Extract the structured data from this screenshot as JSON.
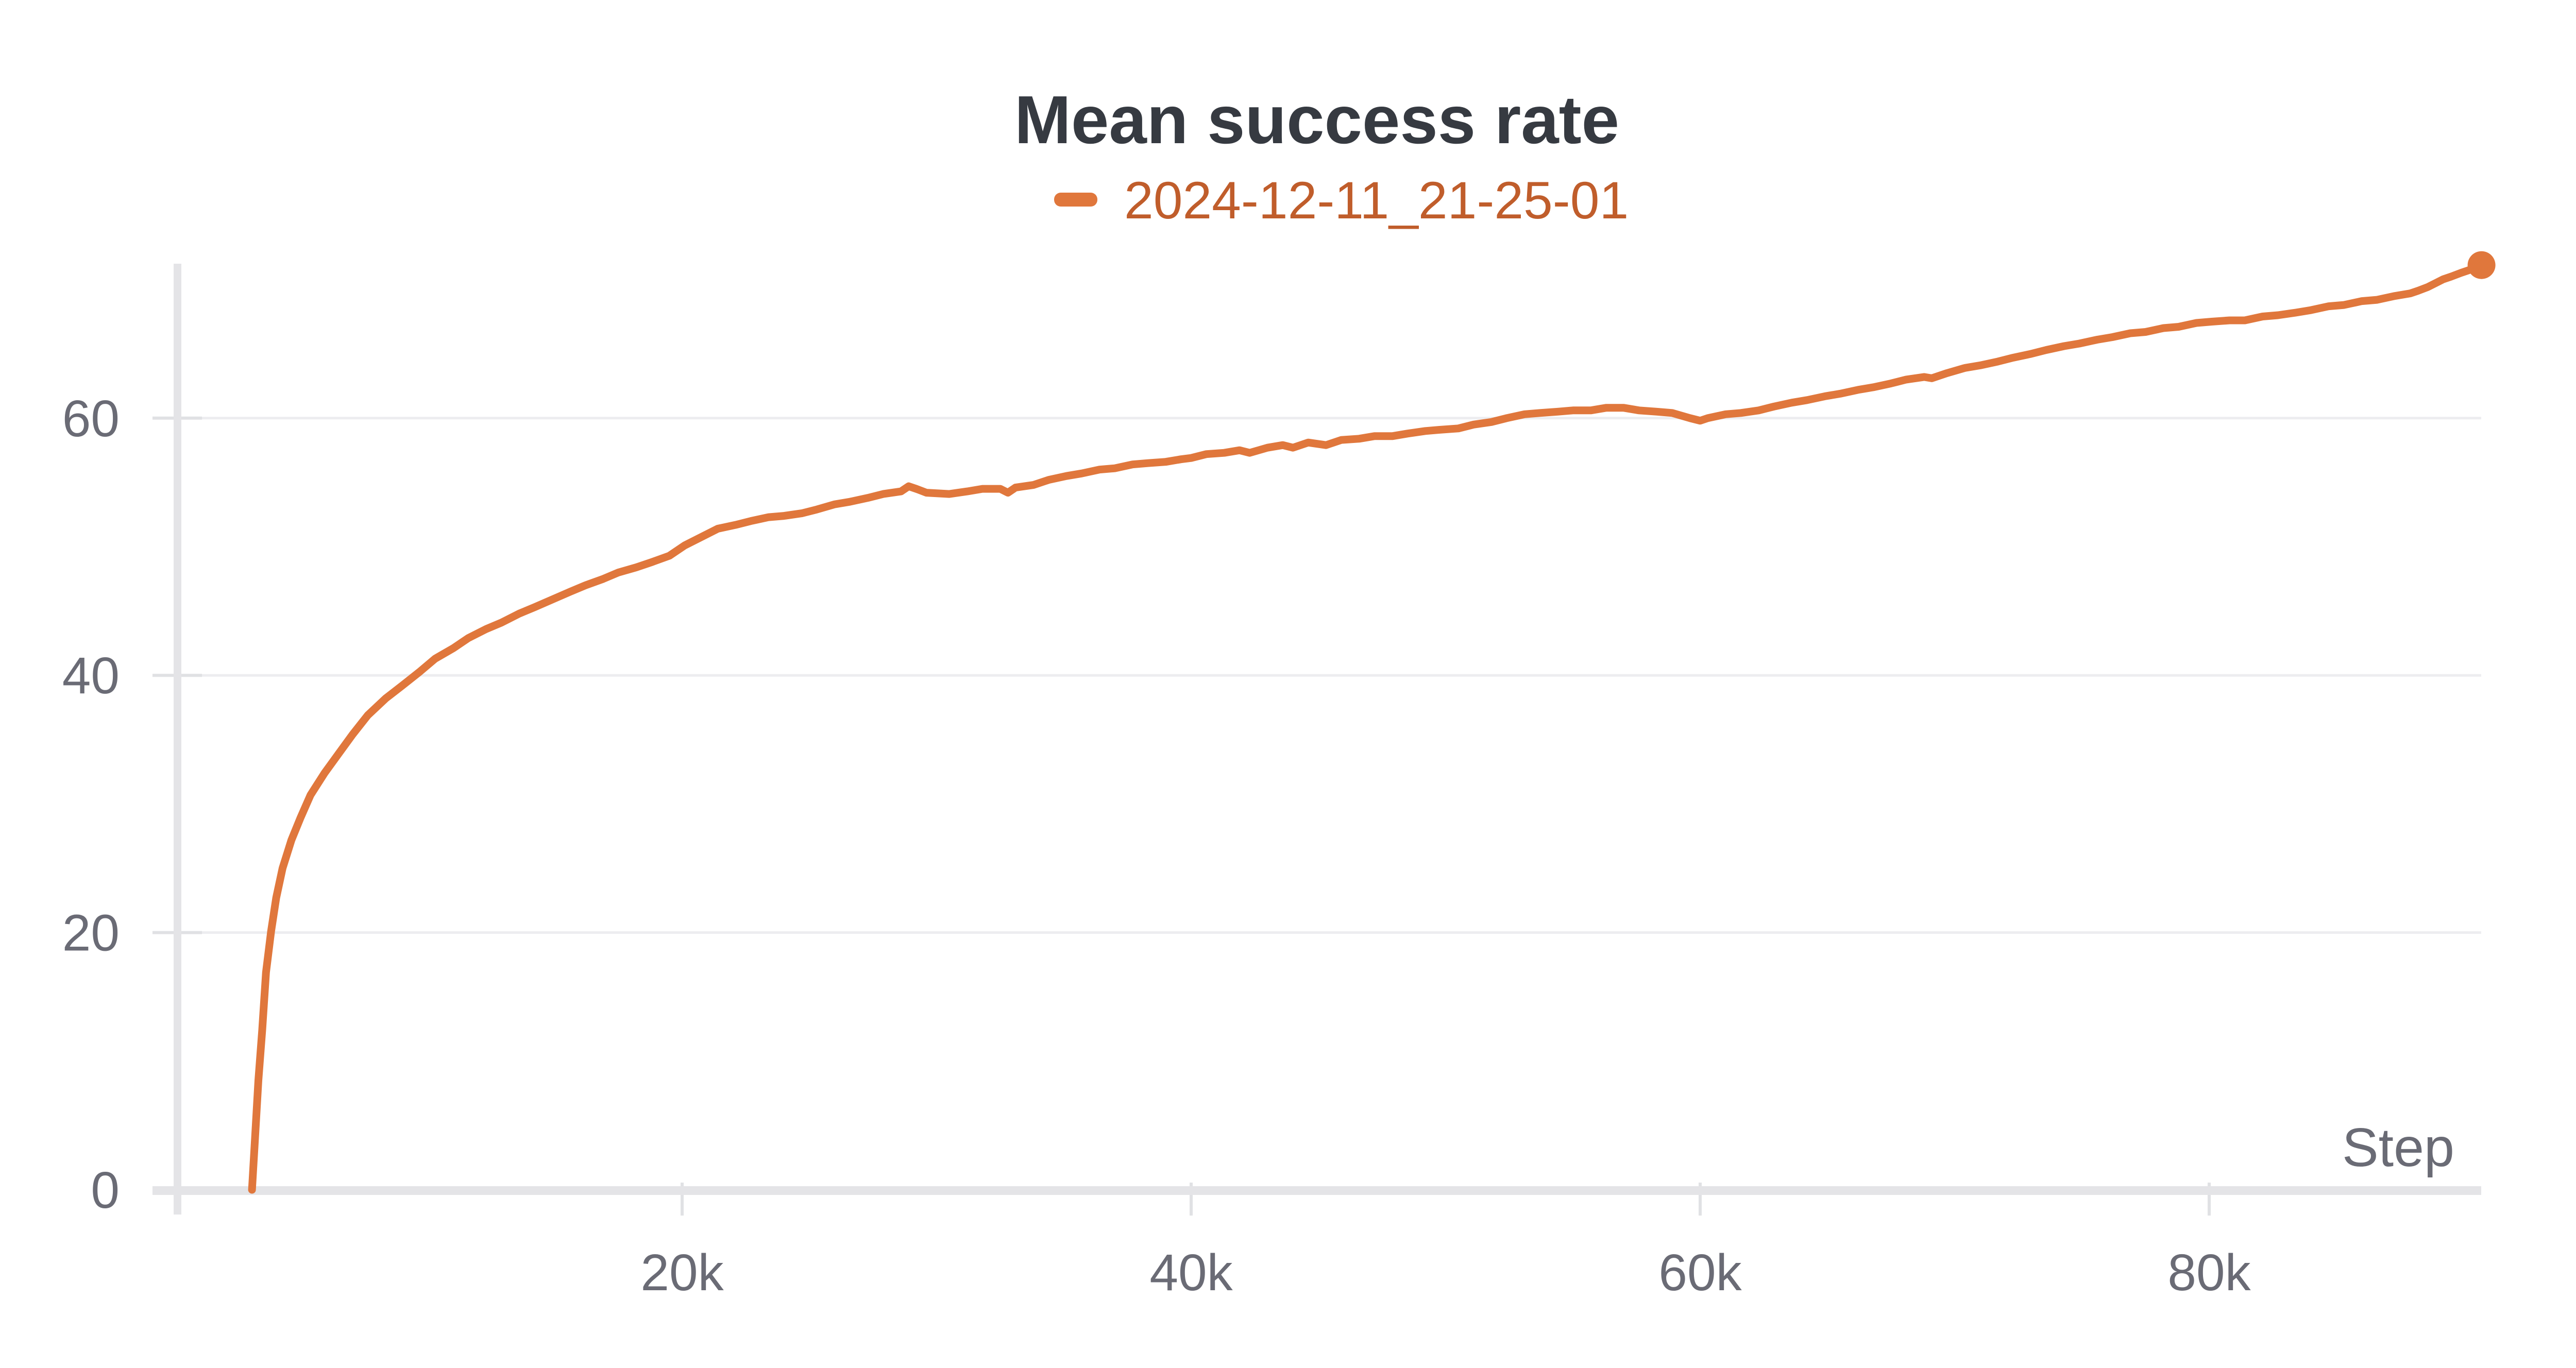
{
  "chart": {
    "title": "Mean success rate",
    "legend": {
      "series_label": "2024-12-11_21-25-01",
      "swatch_icon": "dash-swatch-icon"
    },
    "x_axis": {
      "label": "Step",
      "tick_labels": [
        "20k",
        "40k",
        "60k",
        "80k"
      ],
      "tick_values": [
        20000,
        40000,
        60000,
        80000
      ]
    },
    "y_axis": {
      "tick_labels": [
        "0",
        "20",
        "40",
        "60"
      ],
      "tick_values": [
        0,
        20,
        40,
        60
      ]
    },
    "colors": {
      "series": "#e0773c",
      "legend_text": "#c05d2b",
      "title_text": "#363a41",
      "tick_text": "#6a6b75",
      "grid_line": "#ededf0",
      "axis_line": "#e4e4e7",
      "tick_mark": "#e0e1e4",
      "background": "#ffffff"
    }
  },
  "chart_data": {
    "type": "line",
    "title": "Mean success rate",
    "xlabel": "Step",
    "ylabel": "",
    "legend_position": "top-center",
    "grid": "horizontal-only",
    "xlim": [
      0,
      90700
    ],
    "ylim": [
      0,
      72
    ],
    "x_ticks": [
      20000,
      40000,
      60000,
      80000
    ],
    "y_ticks": [
      0,
      20,
      40,
      60
    ],
    "series": [
      {
        "name": "2024-12-11_21-25-01",
        "color": "#e0773c",
        "end_marker": true,
        "points": [
          [
            3100,
            0
          ],
          [
            3200,
            3.4
          ],
          [
            3350,
            8.5
          ],
          [
            3500,
            12.4
          ],
          [
            3650,
            16.9
          ],
          [
            3850,
            20.1
          ],
          [
            4050,
            22.7
          ],
          [
            4300,
            25.0
          ],
          [
            4650,
            27.2
          ],
          [
            5000,
            28.9
          ],
          [
            5400,
            30.7
          ],
          [
            5950,
            32.4
          ],
          [
            6500,
            33.9
          ],
          [
            7050,
            35.4
          ],
          [
            7650,
            36.9
          ],
          [
            8350,
            38.2
          ],
          [
            9000,
            39.2
          ],
          [
            9700,
            40.3
          ],
          [
            10300,
            41.3
          ],
          [
            11000,
            42.1
          ],
          [
            11600,
            42.9
          ],
          [
            12300,
            43.6
          ],
          [
            12900,
            44.1
          ],
          [
            13600,
            44.8
          ],
          [
            14200,
            45.3
          ],
          [
            14900,
            45.9
          ],
          [
            15600,
            46.5
          ],
          [
            16200,
            47.0
          ],
          [
            16900,
            47.5
          ],
          [
            17500,
            48.0
          ],
          [
            18200,
            48.4
          ],
          [
            18800,
            48.8
          ],
          [
            19500,
            49.3
          ],
          [
            20100,
            50.1
          ],
          [
            20800,
            50.8
          ],
          [
            21400,
            51.4
          ],
          [
            22100,
            51.7
          ],
          [
            22700,
            52.0
          ],
          [
            23400,
            52.3
          ],
          [
            24000,
            52.4
          ],
          [
            24700,
            52.6
          ],
          [
            25300,
            52.9
          ],
          [
            26000,
            53.3
          ],
          [
            26600,
            53.5
          ],
          [
            27300,
            53.8
          ],
          [
            27900,
            54.1
          ],
          [
            28600,
            54.3
          ],
          [
            28900,
            54.7
          ],
          [
            29200,
            54.5
          ],
          [
            29600,
            54.2
          ],
          [
            30500,
            54.1
          ],
          [
            31200,
            54.3
          ],
          [
            31800,
            54.5
          ],
          [
            32500,
            54.5
          ],
          [
            32800,
            54.2
          ],
          [
            33100,
            54.6
          ],
          [
            33800,
            54.8
          ],
          [
            34400,
            55.2
          ],
          [
            35100,
            55.5
          ],
          [
            35700,
            55.7
          ],
          [
            36400,
            56.0
          ],
          [
            37000,
            56.1
          ],
          [
            37700,
            56.4
          ],
          [
            38300,
            56.5
          ],
          [
            39000,
            56.6
          ],
          [
            39600,
            56.8
          ],
          [
            40000,
            56.9
          ],
          [
            40600,
            57.2
          ],
          [
            41300,
            57.3
          ],
          [
            41900,
            57.5
          ],
          [
            42300,
            57.3
          ],
          [
            43000,
            57.7
          ],
          [
            43600,
            57.9
          ],
          [
            44000,
            57.7
          ],
          [
            44600,
            58.1
          ],
          [
            45300,
            57.9
          ],
          [
            45900,
            58.3
          ],
          [
            46600,
            58.4
          ],
          [
            47200,
            58.6
          ],
          [
            47900,
            58.6
          ],
          [
            48500,
            58.8
          ],
          [
            49200,
            59.0
          ],
          [
            49800,
            59.1
          ],
          [
            50500,
            59.2
          ],
          [
            51100,
            59.5
          ],
          [
            51800,
            59.7
          ],
          [
            52400,
            60.0
          ],
          [
            53100,
            60.3
          ],
          [
            53700,
            60.4
          ],
          [
            54400,
            60.5
          ],
          [
            55000,
            60.6
          ],
          [
            55700,
            60.6
          ],
          [
            56300,
            60.8
          ],
          [
            57000,
            60.8
          ],
          [
            57600,
            60.6
          ],
          [
            58300,
            60.5
          ],
          [
            58900,
            60.4
          ],
          [
            59600,
            60.0
          ],
          [
            60000,
            59.8
          ],
          [
            60300,
            60.0
          ],
          [
            61000,
            60.3
          ],
          [
            61600,
            60.4
          ],
          [
            62300,
            60.6
          ],
          [
            62900,
            60.9
          ],
          [
            63600,
            61.2
          ],
          [
            64200,
            61.4
          ],
          [
            64900,
            61.7
          ],
          [
            65500,
            61.9
          ],
          [
            66200,
            62.2
          ],
          [
            66800,
            62.4
          ],
          [
            67500,
            62.7
          ],
          [
            68100,
            63.0
          ],
          [
            68800,
            63.2
          ],
          [
            69100,
            63.1
          ],
          [
            69700,
            63.5
          ],
          [
            70400,
            63.9
          ],
          [
            71000,
            64.1
          ],
          [
            71700,
            64.4
          ],
          [
            72300,
            64.7
          ],
          [
            73000,
            65.0
          ],
          [
            73600,
            65.3
          ],
          [
            74300,
            65.6
          ],
          [
            74900,
            65.8
          ],
          [
            75600,
            66.1
          ],
          [
            76200,
            66.3
          ],
          [
            76900,
            66.6
          ],
          [
            77500,
            66.7
          ],
          [
            78200,
            67.0
          ],
          [
            78800,
            67.1
          ],
          [
            79500,
            67.4
          ],
          [
            80100,
            67.5
          ],
          [
            80800,
            67.6
          ],
          [
            81400,
            67.6
          ],
          [
            82100,
            67.9
          ],
          [
            82700,
            68.0
          ],
          [
            83400,
            68.2
          ],
          [
            84000,
            68.4
          ],
          [
            84700,
            68.7
          ],
          [
            85300,
            68.8
          ],
          [
            86000,
            69.1
          ],
          [
            86600,
            69.2
          ],
          [
            87300,
            69.5
          ],
          [
            87900,
            69.7
          ],
          [
            88200,
            69.9
          ],
          [
            88600,
            70.2
          ],
          [
            88900,
            70.5
          ],
          [
            89200,
            70.8
          ],
          [
            89500,
            71.0
          ],
          [
            89900,
            71.3
          ],
          [
            90200,
            71.5
          ],
          [
            90500,
            71.8
          ],
          [
            90700,
            71.9
          ]
        ]
      }
    ]
  }
}
